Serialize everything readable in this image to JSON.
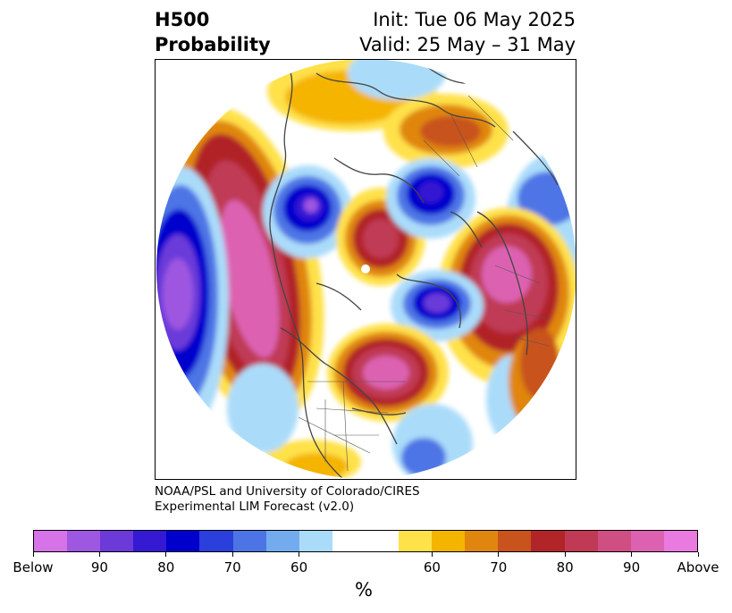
{
  "header": {
    "title_line1": "H500",
    "title_line2": "Probability",
    "init_line": "Init: Tue 06 May 2025",
    "valid_line": "Valid: 25 May – 31 May"
  },
  "credit": {
    "line1": "NOAA/PSL and University of Colorado/CIRES",
    "line2": "Experimental LIM Forecast (v2.0)"
  },
  "colorbar": {
    "unit": "%",
    "colors": [
      "#d773e8",
      "#9e57e1",
      "#6b3ad9",
      "#3519d3",
      "#0000cd",
      "#2a3fdb",
      "#4d74e5",
      "#72acef",
      "#aadcfa",
      "#ffffff",
      "#ffe14a",
      "#f4b400",
      "#e0860f",
      "#c8531c",
      "#b12427",
      "#c03a55",
      "#cf4f83",
      "#dc62b1",
      "#e87ae0"
    ],
    "ticks": [
      "Below",
      "90",
      "80",
      "70",
      "60",
      "60",
      "70",
      "80",
      "90",
      "Above"
    ]
  },
  "map": {
    "projection": "north-polar-stereographic",
    "palette": {
      "above_60": "#ffe14a",
      "above_70": "#e0860f",
      "above_80": "#b12427",
      "above_90": "#dc62b1",
      "below_60": "#aadcfa",
      "below_70": "#4d74e5",
      "below_80": "#0000cd",
      "below_90": "#9e57e1",
      "coast": "#444444",
      "border": "#555555"
    }
  }
}
